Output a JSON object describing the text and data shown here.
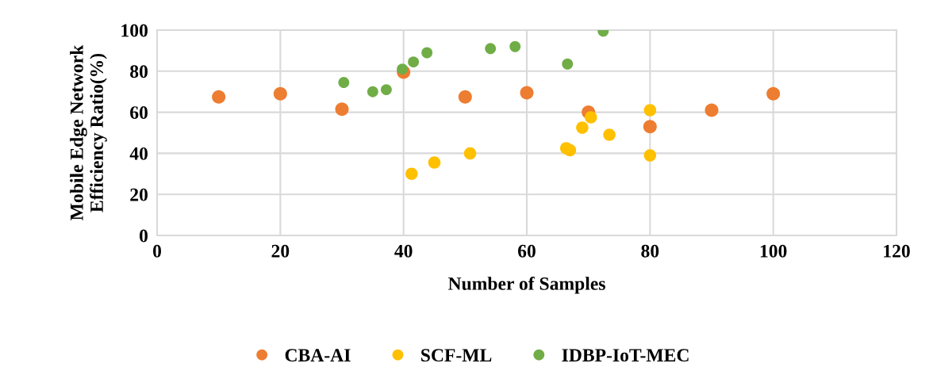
{
  "chart_data": {
    "type": "scatter",
    "xlabel": "Number of Samples",
    "ylabel": "Mobile Edge Network\nEfficiency Ratio(%)",
    "xlim": [
      0,
      120
    ],
    "xticks": [
      0,
      20,
      40,
      60,
      80,
      100,
      120
    ],
    "ylim": [
      0,
      100
    ],
    "yticks": [
      0,
      20,
      40,
      60,
      80,
      100
    ],
    "grid": true,
    "legend": "bottom",
    "marker": "circle",
    "series": [
      {
        "name": "CBA-AI",
        "color": "#ed7d31",
        "x": [
          10,
          20,
          30,
          40,
          50,
          60,
          70,
          80,
          90,
          100
        ],
        "values": [
          67.5,
          69,
          61.5,
          79.5,
          67.5,
          69.5,
          60,
          53,
          61,
          69
        ]
      },
      {
        "name": "SCF-ML",
        "color": "#ffc000",
        "x": [
          41.3,
          45,
          50.8,
          66.4,
          67,
          69,
          70.4,
          73.4,
          80,
          80
        ],
        "values": [
          30,
          35.5,
          40,
          42.5,
          41.5,
          52.5,
          57.5,
          49,
          61,
          39
        ]
      },
      {
        "name": "IDBP-IoT-MEC",
        "color": "#70ad47",
        "x": [
          30.3,
          35,
          37.2,
          39.8,
          41.6,
          43.8,
          54.1,
          58.1,
          66.6,
          72.4
        ],
        "values": [
          74.5,
          70,
          71,
          81,
          84.5,
          89,
          91,
          92,
          83.5,
          99.5
        ]
      }
    ]
  }
}
